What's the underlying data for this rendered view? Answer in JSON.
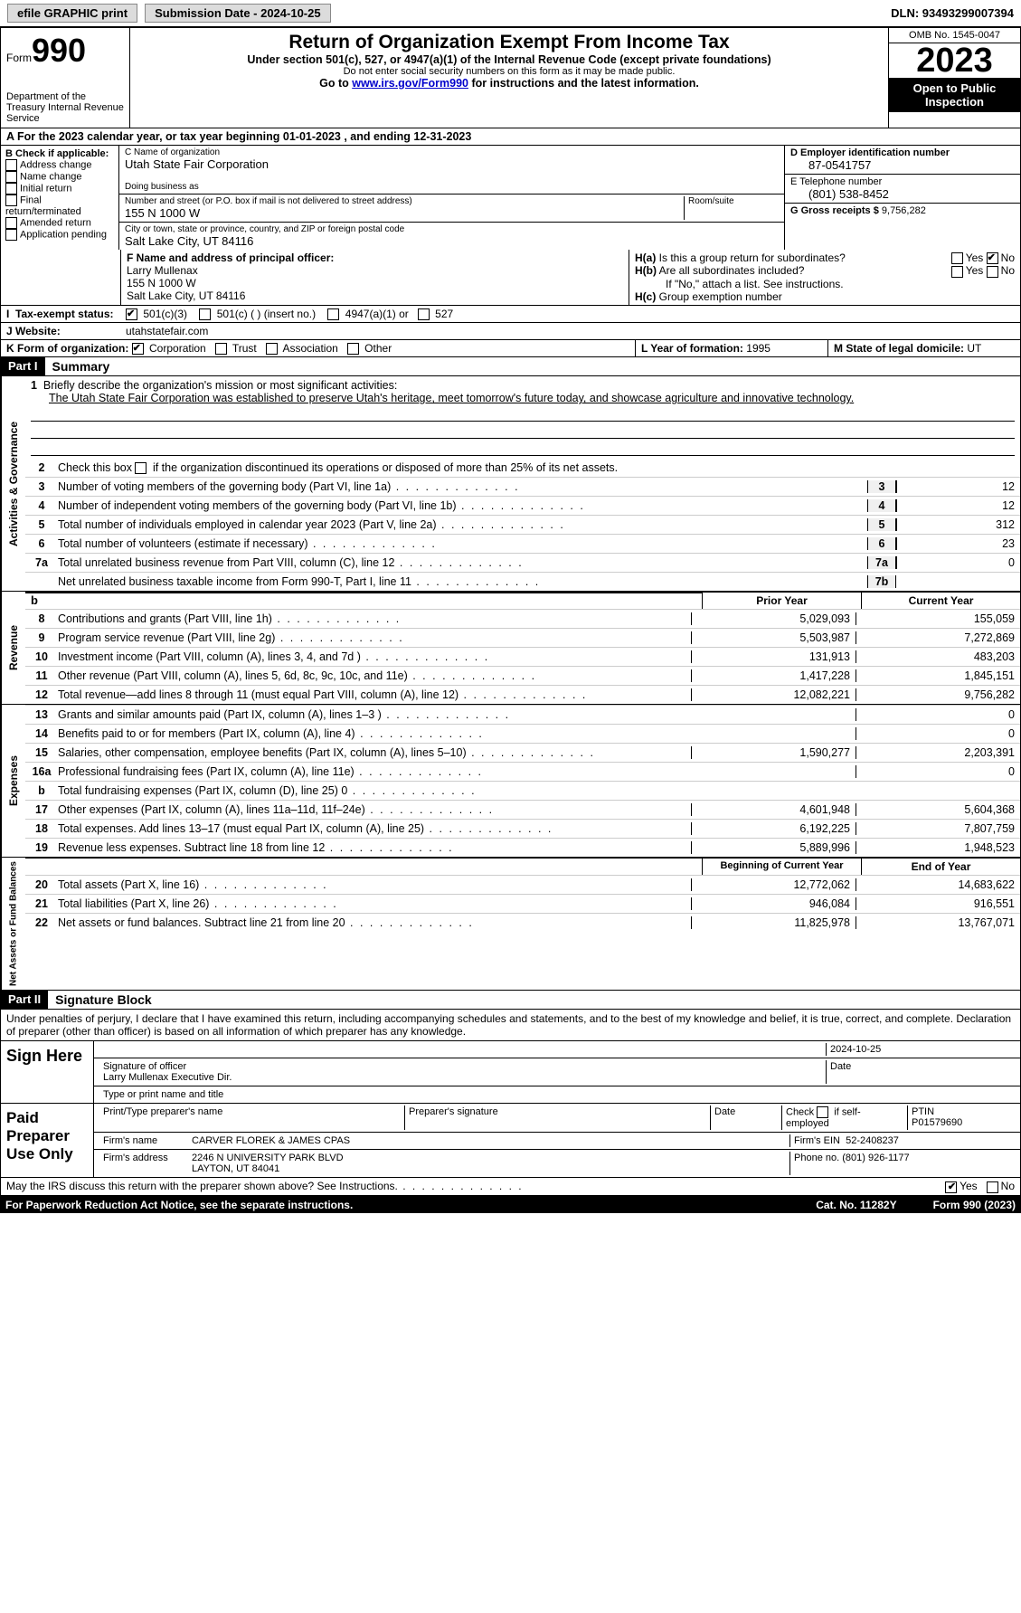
{
  "topbar": {
    "efile_label": "efile GRAPHIC print",
    "submission_label": "Submission Date - 2024-10-25",
    "dln": "DLN: 93493299007394"
  },
  "header": {
    "form_label": "Form",
    "form_number": "990",
    "dept": "Department of the Treasury\nInternal Revenue Service",
    "title": "Return of Organization Exempt From Income Tax",
    "subtitle": "Under section 501(c), 527, or 4947(a)(1) of the Internal Revenue Code (except private foundations)",
    "sub2": "Do not enter social security numbers on this form as it may be made public.",
    "sub3_pre": "Go to ",
    "sub3_link": "www.irs.gov/Form990",
    "sub3_post": " for instructions and the latest information.",
    "omb": "OMB No. 1545-0047",
    "year": "2023",
    "open": "Open to Public Inspection"
  },
  "rowA": "A  For the 2023 calendar year, or tax year beginning 01-01-2023   , and ending 12-31-2023",
  "boxB": {
    "title": "B Check if applicable:",
    "opts": [
      "Address change",
      "Name change",
      "Initial return",
      "Final return/terminated",
      "Amended return",
      "Application pending"
    ]
  },
  "boxC": {
    "name_label": "C Name of organization",
    "name": "Utah State Fair Corporation",
    "dba_label": "Doing business as",
    "addr_label": "Number and street (or P.O. box if mail is not delivered to street address)",
    "room_label": "Room/suite",
    "addr": "155 N 1000 W",
    "city_label": "City or town, state or province, country, and ZIP or foreign postal code",
    "city": "Salt Lake City, UT  84116"
  },
  "boxD": {
    "ein_label": "D Employer identification number",
    "ein": "87-0541757",
    "phone_label": "E Telephone number",
    "phone": "(801) 538-8452",
    "gross_label": "G Gross receipts $",
    "gross": "9,756,282"
  },
  "boxF": {
    "label": "F  Name and address of principal officer:",
    "name": "Larry Mullenax",
    "addr1": "155 N 1000 W",
    "addr2": "Salt Lake City, UT  84116"
  },
  "boxH": {
    "a_label": "H(a)  Is this a group return for subordinates?",
    "b_label": "H(b)  Are all subordinates included?",
    "b_note": "If \"No,\" attach a list. See instructions.",
    "c_label": "H(c)  Group exemption number",
    "yes": "Yes",
    "no": "No"
  },
  "rowI": {
    "label": "Tax-exempt status:",
    "opt1": "501(c)(3)",
    "opt2": "501(c) (  ) (insert no.)",
    "opt3": "4947(a)(1) or",
    "opt4": "527"
  },
  "rowJ": {
    "label": "J   Website:",
    "val": "utahstatefair.com"
  },
  "rowK": {
    "label": "K Form of organization:",
    "opts": [
      "Corporation",
      "Trust",
      "Association",
      "Other"
    ],
    "L_label": "L Year of formation:",
    "L_val": "1995",
    "M_label": "M State of legal domicile:",
    "M_val": "UT"
  },
  "part1": {
    "header": "Part I",
    "title": "Summary",
    "line1_label": "Briefly describe the organization's mission or most significant activities:",
    "mission": "The Utah State Fair Corporation was established to preserve Utah's heritage, meet tomorrow's future today, and showcase agriculture and innovative technology.",
    "line2": "Check this box      if the organization discontinued its operations or disposed of more than 25% of its net assets.",
    "governance_lines": [
      {
        "n": "3",
        "desc": "Number of voting members of the governing body (Part VI, line 1a)",
        "box": "3",
        "val": "12"
      },
      {
        "n": "4",
        "desc": "Number of independent voting members of the governing body (Part VI, line 1b)",
        "box": "4",
        "val": "12"
      },
      {
        "n": "5",
        "desc": "Total number of individuals employed in calendar year 2023 (Part V, line 2a)",
        "box": "5",
        "val": "312"
      },
      {
        "n": "6",
        "desc": "Total number of volunteers (estimate if necessary)",
        "box": "6",
        "val": "23"
      },
      {
        "n": "7a",
        "desc": "Total unrelated business revenue from Part VIII, column (C), line 12",
        "box": "7a",
        "val": "0"
      },
      {
        "n": "",
        "desc": "Net unrelated business taxable income from Form 990-T, Part I, line 11",
        "box": "7b",
        "val": ""
      }
    ],
    "prior_year": "Prior Year",
    "current_year": "Current Year",
    "revenue_lines": [
      {
        "n": "8",
        "desc": "Contributions and grants (Part VIII, line 1h)",
        "py": "5,029,093",
        "cy": "155,059"
      },
      {
        "n": "9",
        "desc": "Program service revenue (Part VIII, line 2g)",
        "py": "5,503,987",
        "cy": "7,272,869"
      },
      {
        "n": "10",
        "desc": "Investment income (Part VIII, column (A), lines 3, 4, and 7d )",
        "py": "131,913",
        "cy": "483,203"
      },
      {
        "n": "11",
        "desc": "Other revenue (Part VIII, column (A), lines 5, 6d, 8c, 9c, 10c, and 11e)",
        "py": "1,417,228",
        "cy": "1,845,151"
      },
      {
        "n": "12",
        "desc": "Total revenue—add lines 8 through 11 (must equal Part VIII, column (A), line 12)",
        "py": "12,082,221",
        "cy": "9,756,282"
      }
    ],
    "expense_lines": [
      {
        "n": "13",
        "desc": "Grants and similar amounts paid (Part IX, column (A), lines 1–3 )",
        "py": "",
        "cy": "0"
      },
      {
        "n": "14",
        "desc": "Benefits paid to or for members (Part IX, column (A), line 4)",
        "py": "",
        "cy": "0"
      },
      {
        "n": "15",
        "desc": "Salaries, other compensation, employee benefits (Part IX, column (A), lines 5–10)",
        "py": "1,590,277",
        "cy": "2,203,391"
      },
      {
        "n": "16a",
        "desc": "Professional fundraising fees (Part IX, column (A), line 11e)",
        "py": "",
        "cy": "0"
      },
      {
        "n": "b",
        "desc": "Total fundraising expenses (Part IX, column (D), line 25) 0",
        "py": "shade",
        "cy": "shade"
      },
      {
        "n": "17",
        "desc": "Other expenses (Part IX, column (A), lines 11a–11d, 11f–24e)",
        "py": "4,601,948",
        "cy": "5,604,368"
      },
      {
        "n": "18",
        "desc": "Total expenses. Add lines 13–17 (must equal Part IX, column (A), line 25)",
        "py": "6,192,225",
        "cy": "7,807,759"
      },
      {
        "n": "19",
        "desc": "Revenue less expenses. Subtract line 18 from line 12",
        "py": "5,889,996",
        "cy": "1,948,523"
      }
    ],
    "begin_year": "Beginning of Current Year",
    "end_year": "End of Year",
    "net_lines": [
      {
        "n": "20",
        "desc": "Total assets (Part X, line 16)",
        "py": "12,772,062",
        "cy": "14,683,622"
      },
      {
        "n": "21",
        "desc": "Total liabilities (Part X, line 26)",
        "py": "946,084",
        "cy": "916,551"
      },
      {
        "n": "22",
        "desc": "Net assets or fund balances. Subtract line 21 from line 20",
        "py": "11,825,978",
        "cy": "13,767,071"
      }
    ]
  },
  "section_labels": {
    "governance": "Activities & Governance",
    "revenue": "Revenue",
    "expenses": "Expenses",
    "net": "Net Assets or Fund Balances"
  },
  "part2": {
    "header": "Part II",
    "title": "Signature Block",
    "penalty": "Under penalties of perjury, I declare that I have examined this return, including accompanying schedules and statements, and to the best of my knowledge and belief, it is true, correct, and complete. Declaration of preparer (other than officer) is based on all information of which preparer has any knowledge.",
    "sign_here": "Sign Here",
    "date": "2024-10-25",
    "sig_officer_label": "Signature of officer",
    "officer_name": "Larry Mullenax  Executive Dir.",
    "type_label": "Type or print name and title",
    "date_label": "Date",
    "paid": "Paid Preparer Use Only",
    "prep_name_label": "Print/Type preparer's name",
    "prep_sig_label": "Preparer's signature",
    "check_self": "Check       if self-employed",
    "ptin_label": "PTIN",
    "ptin": "P01579690",
    "firm_name_label": "Firm's name",
    "firm_name": "CARVER FLOREK & JAMES CPAS",
    "firm_ein_label": "Firm's EIN",
    "firm_ein": "52-2408237",
    "firm_addr_label": "Firm's address",
    "firm_addr1": "2246 N UNIVERSITY PARK BLVD",
    "firm_addr2": "LAYTON, UT  84041",
    "phone_label": "Phone no.",
    "phone": "(801) 926-1177",
    "discuss": "May the IRS discuss this return with the preparer shown above? See Instructions.",
    "yes": "Yes",
    "no": "No"
  },
  "footer": {
    "pra": "For Paperwork Reduction Act Notice, see the separate instructions.",
    "cat": "Cat. No. 11282Y",
    "form": "Form 990 (2023)"
  }
}
